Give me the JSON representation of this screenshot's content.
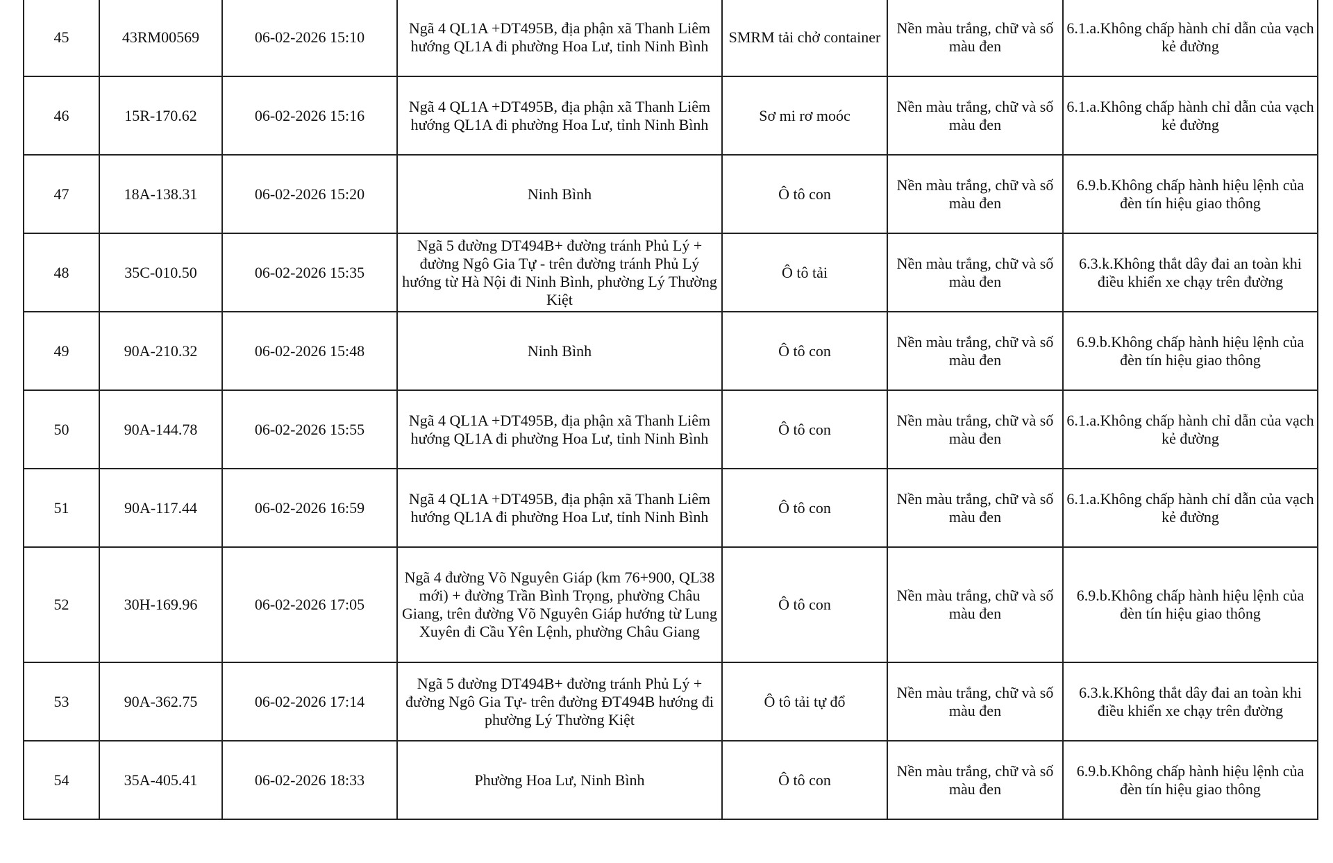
{
  "rows": [
    {
      "stt": "45",
      "plate": "43RM00569",
      "time": "06-02-2026 15:10",
      "location": "Ngã 4 QL1A +DT495B, địa phận xã Thanh Liêm hướng QL1A đi phường Hoa Lư, tỉnh Ninh Bình",
      "vehicle": "SMRM tải chở container",
      "plate_color": "Nền màu trắng, chữ và số màu đen",
      "violation": "6.1.a.Không chấp hành chỉ dẫn của vạch kẻ đường"
    },
    {
      "stt": "46",
      "plate": "15R-170.62",
      "time": "06-02-2026 15:16",
      "location": "Ngã 4 QL1A +DT495B, địa phận xã Thanh Liêm hướng QL1A đi phường Hoa Lư, tỉnh Ninh Bình",
      "vehicle": "Sơ mi rơ moóc",
      "plate_color": "Nền màu trắng, chữ và số màu đen",
      "violation": "6.1.a.Không chấp hành chỉ dẫn của vạch kẻ đường"
    },
    {
      "stt": "47",
      "plate": "18A-138.31",
      "time": "06-02-2026 15:20",
      "location": "Ninh Bình",
      "vehicle": "Ô tô con",
      "plate_color": "Nền màu trắng, chữ và số màu đen",
      "violation": "6.9.b.Không chấp hành hiệu lệnh của đèn tín hiệu giao thông"
    },
    {
      "stt": "48",
      "plate": "35C-010.50",
      "time": "06-02-2026 15:35",
      "location": "Ngã 5 đường DT494B+ đường tránh Phủ Lý + đường Ngô Gia Tự - trên đường tránh Phủ Lý hướng từ Hà Nội đi Ninh Bình, phường Lý Thường Kiệt",
      "vehicle": "Ô tô tải",
      "plate_color": "Nền màu trắng, chữ và số màu đen",
      "violation": "6.3.k.Không thắt dây đai an toàn khi điều khiển xe chạy trên đường"
    },
    {
      "stt": "49",
      "plate": "90A-210.32",
      "time": "06-02-2026 15:48",
      "location": "Ninh Bình",
      "vehicle": "Ô tô con",
      "plate_color": "Nền màu trắng, chữ và số màu đen",
      "violation": "6.9.b.Không chấp hành hiệu lệnh của đèn tín hiệu giao thông"
    },
    {
      "stt": "50",
      "plate": "90A-144.78",
      "time": "06-02-2026 15:55",
      "location": "Ngã 4 QL1A +DT495B, địa phận xã Thanh Liêm hướng QL1A đi phường Hoa Lư, tỉnh Ninh Bình",
      "vehicle": "Ô tô con",
      "plate_color": "Nền màu trắng, chữ và số màu đen",
      "violation": "6.1.a.Không chấp hành chỉ dẫn của vạch kẻ đường"
    },
    {
      "stt": "51",
      "plate": "90A-117.44",
      "time": "06-02-2026 16:59",
      "location": "Ngã 4 QL1A +DT495B, địa phận xã Thanh Liêm hướng QL1A đi phường Hoa Lư, tỉnh Ninh Bình",
      "vehicle": "Ô tô con",
      "plate_color": "Nền màu trắng, chữ và số màu đen",
      "violation": "6.1.a.Không chấp hành chỉ dẫn của vạch kẻ đường"
    },
    {
      "stt": "52",
      "plate": "30H-169.96",
      "time": "06-02-2026 17:05",
      "location": "Ngã 4 đường Võ Nguyên Giáp (km 76+900, QL38 mới) + đường Trần Bình Trọng, phường Châu Giang, trên đường Võ Nguyên Giáp hướng từ Lung Xuyên đi Cầu Yên Lệnh, phường Châu Giang",
      "vehicle": "Ô tô con",
      "plate_color": "Nền màu trắng, chữ và số màu đen",
      "violation": "6.9.b.Không chấp hành hiệu lệnh của đèn tín hiệu giao thông"
    },
    {
      "stt": "53",
      "plate": "90A-362.75",
      "time": "06-02-2026 17:14",
      "location": "Ngã 5 đường DT494B+ đường tránh Phủ Lý + đường Ngô Gia Tự- trên đường ĐT494B hướng đi phường Lý Thường Kiệt",
      "vehicle": "Ô tô tải tự đổ",
      "plate_color": "Nền màu trắng, chữ và số màu đen",
      "violation": "6.3.k.Không thắt dây đai an toàn khi điều khiển xe chạy trên đường"
    },
    {
      "stt": "54",
      "plate": "35A-405.41",
      "time": "06-02-2026 18:33",
      "location": "Phường Hoa Lư, Ninh Bình",
      "vehicle": "Ô tô con",
      "plate_color": "Nền màu trắng, chữ và số màu đen",
      "violation": "6.9.b.Không chấp hành hiệu lệnh của đèn tín hiệu giao thông"
    }
  ]
}
